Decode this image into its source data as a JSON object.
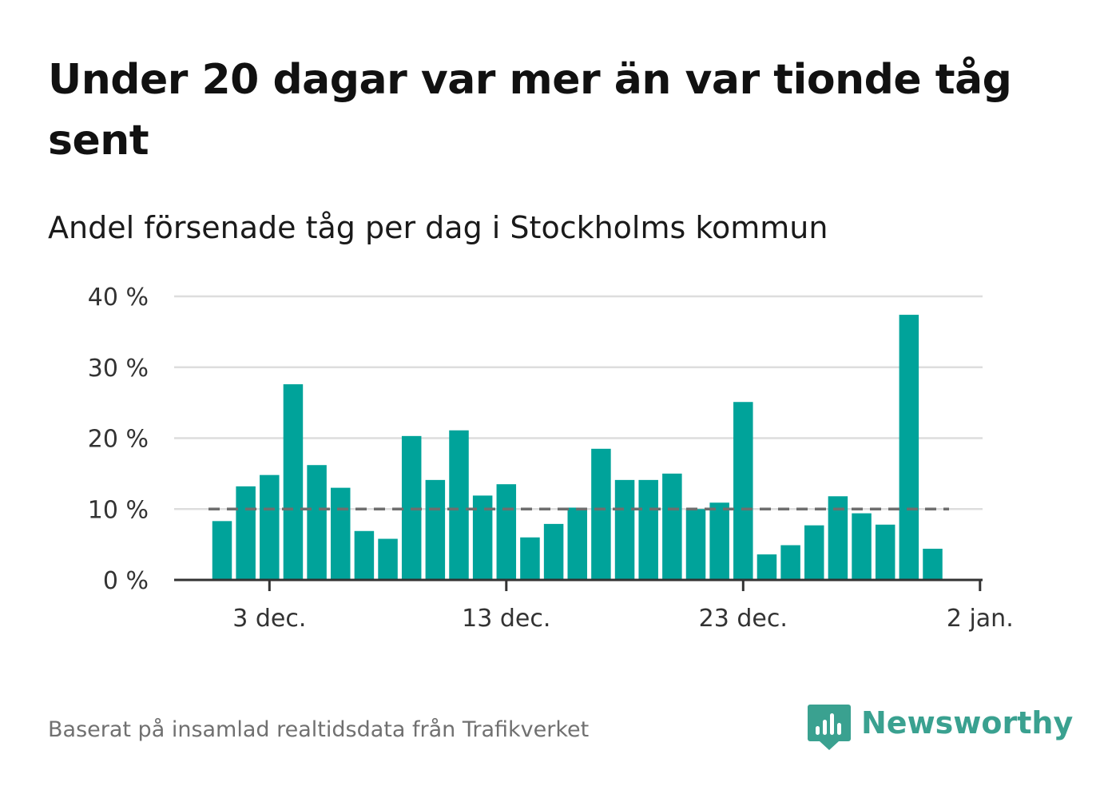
{
  "title": "Under 20 dagar var mer än var tionde tåg sent",
  "subtitle": "Andel försenade tåg per dag i Stockholms kommun",
  "source": "Baserat på insamlad realtidsdata från Trafikverket",
  "brand": {
    "name": "Newsworthy",
    "logo_icon": "newsworthy-chart-bubble-icon",
    "color": "#3aa190"
  },
  "colors": {
    "bars": "#00a39a",
    "reference_line": "#6e6e6e",
    "grid": "#dddddd",
    "axis": "#333333"
  },
  "chart_data": {
    "type": "bar",
    "x": [
      "2024-12-01",
      "2024-12-02",
      "2024-12-03",
      "2024-12-04",
      "2024-12-05",
      "2024-12-06",
      "2024-12-07",
      "2024-12-08",
      "2024-12-09",
      "2024-12-10",
      "2024-12-11",
      "2024-12-12",
      "2024-12-13",
      "2024-12-14",
      "2024-12-15",
      "2024-12-16",
      "2024-12-17",
      "2024-12-18",
      "2024-12-19",
      "2024-12-20",
      "2024-12-21",
      "2024-12-22",
      "2024-12-23",
      "2024-12-24",
      "2024-12-25",
      "2024-12-26",
      "2024-12-27",
      "2024-12-28",
      "2024-12-29",
      "2024-12-30",
      "2024-12-31",
      "2025-01-01"
    ],
    "values": [
      8.3,
      13.2,
      14.8,
      27.6,
      16.2,
      13.0,
      6.9,
      5.8,
      20.3,
      14.1,
      21.1,
      11.9,
      13.5,
      6.0,
      7.9,
      10.2,
      18.5,
      14.1,
      14.1,
      15.0,
      10.0,
      10.9,
      25.1,
      3.6,
      4.9,
      7.7,
      11.8,
      9.4,
      7.8,
      37.4,
      4.4,
      null
    ],
    "reference_line": 10,
    "ylim": [
      0,
      40
    ],
    "yticks": [
      0,
      10,
      20,
      30,
      40
    ],
    "ytick_labels": [
      "0 %",
      "10 %",
      "20 %",
      "30 %",
      "40 %"
    ],
    "xticks": [
      "2024-12-03",
      "2024-12-13",
      "2024-12-23",
      "2025-01-02"
    ],
    "xtick_labels": [
      "3 dec.",
      "13 dec.",
      "23 dec.",
      "2 jan."
    ],
    "grid": true,
    "xlabel": "",
    "ylabel": ""
  }
}
